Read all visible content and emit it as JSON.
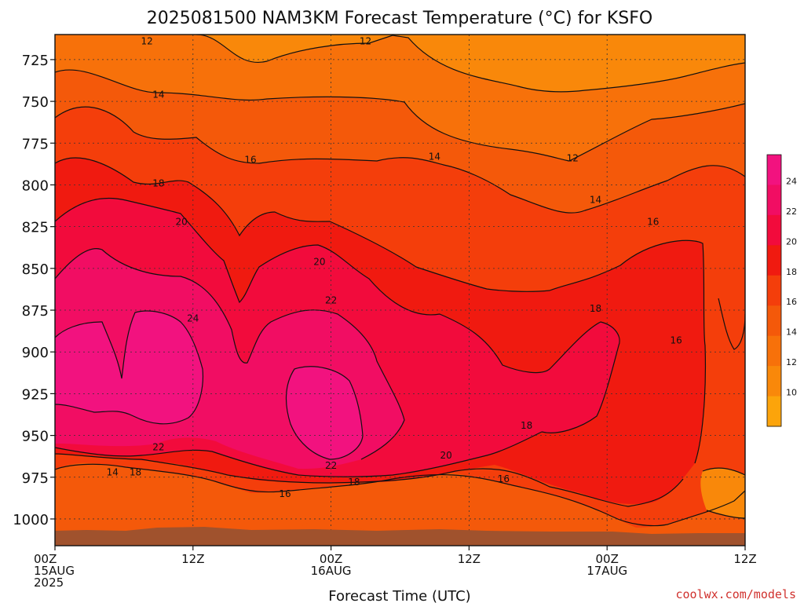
{
  "chart_data": {
    "type": "contour",
    "title": "2025081500 NAM3KM Forecast Temperature (°C) for KSFO",
    "xlabel": "Forecast Time (UTC)",
    "ylabel": "",
    "y_ticks": [
      "725",
      "750",
      "775",
      "800",
      "825",
      "850",
      "875",
      "900",
      "925",
      "950",
      "975",
      "1000"
    ],
    "y_values": [
      725,
      750,
      775,
      800,
      825,
      850,
      875,
      900,
      925,
      950,
      975,
      1000
    ],
    "ylim": [
      710,
      1016
    ],
    "y_inverted": true,
    "xlim_hours": [
      0,
      60
    ],
    "x_ticks": [
      {
        "hour": 0,
        "lines": [
          "00Z",
          "15AUG",
          "2025"
        ]
      },
      {
        "hour": 12,
        "lines": [
          "12Z"
        ]
      },
      {
        "hour": 24,
        "lines": [
          "00Z",
          "16AUG"
        ]
      },
      {
        "hour": 36,
        "lines": [
          "12Z"
        ]
      },
      {
        "hour": 48,
        "lines": [
          "00Z",
          "17AUG"
        ]
      },
      {
        "hour": 60,
        "lines": [
          "12Z"
        ]
      }
    ],
    "contour_levels": [
      10,
      12,
      14,
      16,
      18,
      20,
      22,
      24
    ],
    "contour_labels": [
      {
        "text": "12",
        "hour": 8,
        "p": 714
      },
      {
        "text": "12",
        "hour": 27,
        "p": 714
      },
      {
        "text": "12",
        "hour": 45,
        "p": 784
      },
      {
        "text": "14",
        "hour": 9,
        "p": 746
      },
      {
        "text": "14",
        "hour": 33,
        "p": 783
      },
      {
        "text": "14",
        "hour": 47,
        "p": 809
      },
      {
        "text": "16",
        "hour": 17,
        "p": 785
      },
      {
        "text": "16",
        "hour": 52,
        "p": 822
      },
      {
        "text": "16",
        "hour": 54,
        "p": 893
      },
      {
        "text": "16",
        "hour": 39,
        "p": 976
      },
      {
        "text": "16",
        "hour": 20,
        "p": 985
      },
      {
        "text": "18",
        "hour": 9,
        "p": 799
      },
      {
        "text": "18",
        "hour": 47,
        "p": 874
      },
      {
        "text": "18",
        "hour": 41,
        "p": 944
      },
      {
        "text": "18",
        "hour": 26,
        "p": 978
      },
      {
        "text": "18",
        "hour": 7,
        "p": 972
      },
      {
        "text": "14",
        "hour": 5,
        "p": 972
      },
      {
        "text": "20",
        "hour": 11,
        "p": 822
      },
      {
        "text": "20",
        "hour": 23,
        "p": 846
      },
      {
        "text": "20",
        "hour": 34,
        "p": 962
      },
      {
        "text": "22",
        "hour": 24,
        "p": 869
      },
      {
        "text": "22",
        "hour": 9,
        "p": 957
      },
      {
        "text": "22",
        "hour": 24,
        "p": 968
      },
      {
        "text": "24",
        "hour": 12,
        "p": 880
      }
    ],
    "colorbar": {
      "ticks": [
        "24",
        "22",
        "20",
        "18",
        "16",
        "14",
        "12",
        "10"
      ],
      "colors": [
        "#F2127F",
        "#F10D63",
        "#F20B3C",
        "#F01A10",
        "#F43E0B",
        "#F4590A",
        "#F7710A",
        "#F9880A",
        "#FCA40B"
      ]
    },
    "surface_color": "#A0522D"
  },
  "credit": "coolwx.com/models"
}
